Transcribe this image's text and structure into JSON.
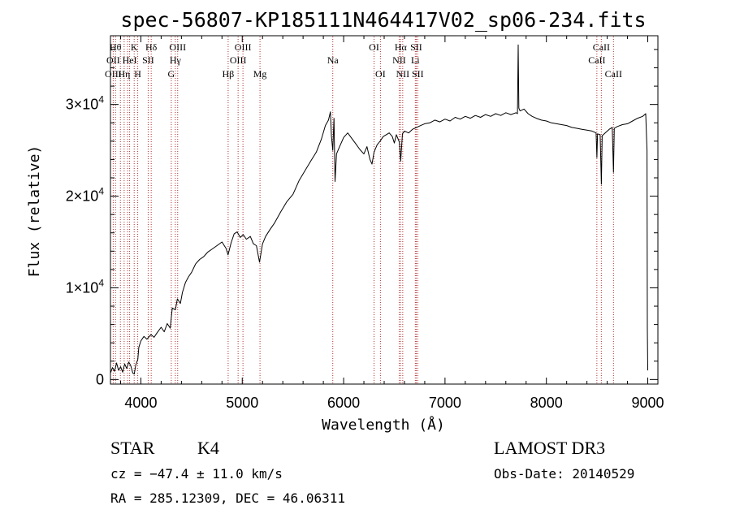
{
  "chart_data": {
    "type": "line",
    "title": "spec-56807-KP185111N464417V02_sp06-234.fits",
    "xlabel": "Wavelength (Å)",
    "ylabel": "Flux (relative)",
    "xlim": [
      3700,
      9100
    ],
    "ylim": [
      -500,
      37500
    ],
    "x_ticks": [
      {
        "value": 4000,
        "label": "4000"
      },
      {
        "value": 5000,
        "label": "5000"
      },
      {
        "value": 6000,
        "label": "6000"
      },
      {
        "value": 7000,
        "label": "7000"
      },
      {
        "value": 8000,
        "label": "8000"
      },
      {
        "value": 9000,
        "label": "9000"
      }
    ],
    "y_ticks": [
      {
        "value": 0,
        "mantissa": "0",
        "exponent": ""
      },
      {
        "value": 10000,
        "mantissa": "1×10",
        "exponent": "4"
      },
      {
        "value": 20000,
        "mantissa": "2×10",
        "exponent": "4"
      },
      {
        "value": 30000,
        "mantissa": "3×10",
        "exponent": "4"
      }
    ],
    "series": [
      {
        "color": "#000000",
        "points": [
          [
            3700,
            700
          ],
          [
            3720,
            1300
          ],
          [
            3740,
            900
          ],
          [
            3760,
            1800
          ],
          [
            3780,
            1000
          ],
          [
            3800,
            1400
          ],
          [
            3820,
            800
          ],
          [
            3840,
            1700
          ],
          [
            3860,
            1200
          ],
          [
            3880,
            1900
          ],
          [
            3900,
            1500
          ],
          [
            3920,
            700
          ],
          [
            3935,
            600
          ],
          [
            3950,
            1600
          ],
          [
            3970,
            2200
          ],
          [
            3980,
            3500
          ],
          [
            4000,
            4200
          ],
          [
            4030,
            4700
          ],
          [
            4060,
            4400
          ],
          [
            4100,
            4900
          ],
          [
            4130,
            4600
          ],
          [
            4160,
            5100
          ],
          [
            4200,
            5700
          ],
          [
            4230,
            5200
          ],
          [
            4260,
            6100
          ],
          [
            4290,
            5600
          ],
          [
            4310,
            7800
          ],
          [
            4340,
            7600
          ],
          [
            4360,
            8800
          ],
          [
            4390,
            8300
          ],
          [
            4410,
            9500
          ],
          [
            4440,
            10600
          ],
          [
            4470,
            11200
          ],
          [
            4500,
            11700
          ],
          [
            4540,
            12600
          ],
          [
            4580,
            13100
          ],
          [
            4620,
            13400
          ],
          [
            4660,
            13900
          ],
          [
            4700,
            14200
          ],
          [
            4750,
            14600
          ],
          [
            4800,
            15000
          ],
          [
            4840,
            14300
          ],
          [
            4860,
            13600
          ],
          [
            4890,
            14900
          ],
          [
            4920,
            15900
          ],
          [
            4950,
            16100
          ],
          [
            4980,
            15500
          ],
          [
            5010,
            15800
          ],
          [
            5040,
            15300
          ],
          [
            5080,
            15600
          ],
          [
            5110,
            14800
          ],
          [
            5140,
            14600
          ],
          [
            5170,
            12800
          ],
          [
            5200,
            14800
          ],
          [
            5230,
            15600
          ],
          [
            5270,
            16300
          ],
          [
            5320,
            17100
          ],
          [
            5380,
            18300
          ],
          [
            5440,
            19400
          ],
          [
            5500,
            20200
          ],
          [
            5560,
            21700
          ],
          [
            5620,
            22800
          ],
          [
            5680,
            23900
          ],
          [
            5730,
            24800
          ],
          [
            5780,
            26200
          ],
          [
            5820,
            27700
          ],
          [
            5850,
            28300
          ],
          [
            5870,
            29200
          ],
          [
            5880,
            26500
          ],
          [
            5893,
            25000
          ],
          [
            5905,
            28500
          ],
          [
            5915,
            21600
          ],
          [
            5930,
            24600
          ],
          [
            5960,
            25400
          ],
          [
            6000,
            26400
          ],
          [
            6040,
            26900
          ],
          [
            6080,
            26300
          ],
          [
            6120,
            25700
          ],
          [
            6160,
            25100
          ],
          [
            6200,
            24600
          ],
          [
            6230,
            25400
          ],
          [
            6260,
            24000
          ],
          [
            6280,
            23500
          ],
          [
            6300,
            24800
          ],
          [
            6330,
            25600
          ],
          [
            6360,
            26000
          ],
          [
            6390,
            26500
          ],
          [
            6420,
            26700
          ],
          [
            6450,
            26900
          ],
          [
            6480,
            26500
          ],
          [
            6500,
            25800
          ],
          [
            6520,
            26700
          ],
          [
            6550,
            25900
          ],
          [
            6563,
            23800
          ],
          [
            6580,
            26800
          ],
          [
            6600,
            27100
          ],
          [
            6640,
            26900
          ],
          [
            6680,
            27300
          ],
          [
            6720,
            27500
          ],
          [
            6760,
            27700
          ],
          [
            6800,
            27900
          ],
          [
            6850,
            28000
          ],
          [
            6900,
            28300
          ],
          [
            6950,
            28100
          ],
          [
            7000,
            28400
          ],
          [
            7050,
            28200
          ],
          [
            7100,
            28600
          ],
          [
            7150,
            28400
          ],
          [
            7200,
            28700
          ],
          [
            7250,
            28500
          ],
          [
            7300,
            28800
          ],
          [
            7350,
            28600
          ],
          [
            7400,
            28900
          ],
          [
            7450,
            28700
          ],
          [
            7500,
            29000
          ],
          [
            7550,
            28800
          ],
          [
            7600,
            29100
          ],
          [
            7650,
            28900
          ],
          [
            7700,
            29100
          ],
          [
            7715,
            29000
          ],
          [
            7722,
            36500
          ],
          [
            7728,
            29600
          ],
          [
            7740,
            29300
          ],
          [
            7780,
            29500
          ],
          [
            7820,
            29000
          ],
          [
            7860,
            28700
          ],
          [
            7900,
            28500
          ],
          [
            7950,
            28300
          ],
          [
            8000,
            28200
          ],
          [
            8050,
            28000
          ],
          [
            8100,
            27900
          ],
          [
            8150,
            27800
          ],
          [
            8200,
            27700
          ],
          [
            8250,
            27500
          ],
          [
            8300,
            27400
          ],
          [
            8350,
            27300
          ],
          [
            8400,
            27200
          ],
          [
            8450,
            27100
          ],
          [
            8490,
            26900
          ],
          [
            8498,
            24200
          ],
          [
            8505,
            26800
          ],
          [
            8530,
            26700
          ],
          [
            8542,
            21300
          ],
          [
            8550,
            26600
          ],
          [
            8580,
            26900
          ],
          [
            8620,
            27300
          ],
          [
            8650,
            27500
          ],
          [
            8662,
            22600
          ],
          [
            8670,
            27400
          ],
          [
            8700,
            27600
          ],
          [
            8750,
            27800
          ],
          [
            8800,
            27900
          ],
          [
            8850,
            28200
          ],
          [
            8900,
            28500
          ],
          [
            8950,
            28700
          ],
          [
            8980,
            29000
          ],
          [
            8993,
            25000
          ],
          [
            8996,
            5600
          ],
          [
            9000,
            1000
          ]
        ]
      }
    ],
    "line_markers": [
      {
        "wavelength": 3727,
        "labels": [
          {
            "text": "OII",
            "row": 1
          },
          {
            "text": "OIII",
            "row": 2
          }
        ]
      },
      {
        "wavelength": 3750,
        "labels": [
          {
            "text": "Hθ",
            "row": 0
          }
        ]
      },
      {
        "wavelength": 3798,
        "labels": []
      },
      {
        "wavelength": 3835,
        "labels": [
          {
            "text": "Hη",
            "row": 2
          }
        ]
      },
      {
        "wavelength": 3869,
        "labels": []
      },
      {
        "wavelength": 3889,
        "labels": [
          {
            "text": "HeI",
            "row": 1
          }
        ]
      },
      {
        "wavelength": 3934,
        "labels": [
          {
            "text": "K",
            "row": 0
          }
        ]
      },
      {
        "wavelength": 3969,
        "labels": [
          {
            "text": "H",
            "row": 2
          }
        ]
      },
      {
        "wavelength": 4072,
        "labels": [
          {
            "text": "SII",
            "row": 1
          }
        ]
      },
      {
        "wavelength": 4102,
        "labels": [
          {
            "text": "Hδ",
            "row": 0
          }
        ]
      },
      {
        "wavelength": 4300,
        "labels": [
          {
            "text": "G",
            "row": 2
          }
        ]
      },
      {
        "wavelength": 4340,
        "labels": [
          {
            "text": "Hγ",
            "row": 1
          }
        ]
      },
      {
        "wavelength": 4363,
        "labels": [
          {
            "text": "OIII",
            "row": 0
          }
        ]
      },
      {
        "wavelength": 4861,
        "labels": [
          {
            "text": "Hβ",
            "row": 2
          }
        ]
      },
      {
        "wavelength": 4959,
        "labels": [
          {
            "text": "OIII",
            "row": 1
          }
        ]
      },
      {
        "wavelength": 5007,
        "labels": [
          {
            "text": "OIII",
            "row": 0
          }
        ]
      },
      {
        "wavelength": 5175,
        "labels": [
          {
            "text": "Mg",
            "row": 2
          }
        ]
      },
      {
        "wavelength": 5893,
        "labels": [
          {
            "text": "Na",
            "row": 1
          }
        ]
      },
      {
        "wavelength": 6300,
        "labels": [
          {
            "text": "OI",
            "row": 0
          }
        ]
      },
      {
        "wavelength": 6363,
        "labels": [
          {
            "text": "OI",
            "row": 2
          }
        ]
      },
      {
        "wavelength": 6548,
        "labels": [
          {
            "text": "NII",
            "row": 1
          }
        ]
      },
      {
        "wavelength": 6563,
        "labels": [
          {
            "text": "Hα",
            "row": 0
          }
        ]
      },
      {
        "wavelength": 6583,
        "labels": [
          {
            "text": "NII",
            "row": 2
          }
        ]
      },
      {
        "wavelength": 6707,
        "labels": [
          {
            "text": "Li",
            "row": 1
          }
        ]
      },
      {
        "wavelength": 6716,
        "labels": [
          {
            "text": "SII",
            "row": 0
          }
        ]
      },
      {
        "wavelength": 6731,
        "labels": [
          {
            "text": "SII",
            "row": 2
          }
        ]
      },
      {
        "wavelength": 8498,
        "labels": [
          {
            "text": "CaII",
            "row": 1
          }
        ]
      },
      {
        "wavelength": 8542,
        "labels": [
          {
            "text": "CaII",
            "row": 0
          }
        ]
      },
      {
        "wavelength": 8662,
        "labels": [
          {
            "text": "CaII",
            "row": 2
          }
        ]
      }
    ],
    "marker_color": "#b03030",
    "grid": false,
    "legend": "none"
  },
  "info": {
    "object_class": "STAR",
    "subclass": "K4",
    "survey": "LAMOST DR3",
    "redshift_text": "cz = −47.4 ± 11.0 km/s",
    "obs_date_text": "Obs-Date: 20140529",
    "coords_text": "RA = 285.12309, DEC =  46.06311"
  }
}
